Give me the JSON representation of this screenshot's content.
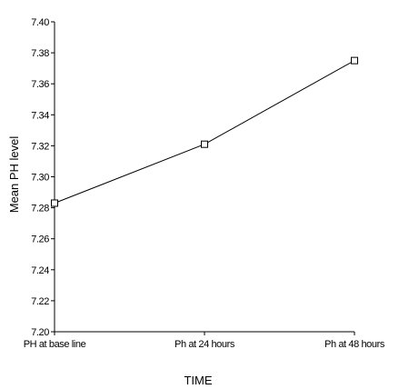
{
  "chart_data": {
    "type": "line",
    "title": "",
    "xlabel": "TIME",
    "ylabel": "Mean PH level",
    "categories": [
      "PH at base line",
      "Ph at 24 hours",
      "Ph at 48 hours"
    ],
    "series": [
      {
        "values": [
          7.283,
          7.321,
          7.375
        ]
      }
    ],
    "ylim": [
      7.2,
      7.4
    ],
    "yticks": [
      "7.20",
      "7.22",
      "7.24",
      "7.26",
      "7.28",
      "7.30",
      "7.32",
      "7.34",
      "7.36",
      "7.38",
      "7.40"
    ],
    "marker": "square",
    "grid": false
  }
}
